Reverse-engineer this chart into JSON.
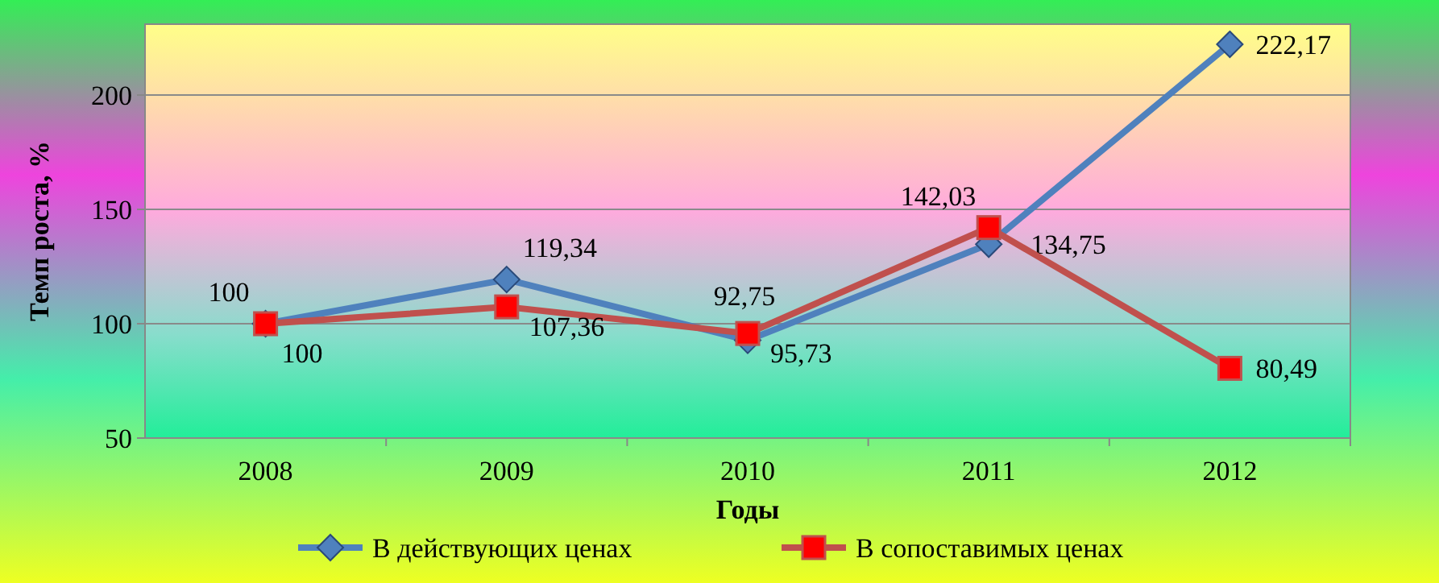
{
  "chart_data": {
    "type": "line",
    "xlabel": "Годы",
    "ylabel": "Темп роста, %",
    "categories": [
      "2008",
      "2009",
      "2010",
      "2011",
      "2012"
    ],
    "series": [
      {
        "name": "В действующих ценах",
        "color": "#4f81bd",
        "marker": "diamond",
        "values": [
          100,
          119.34,
          92.75,
          134.75,
          222.17
        ],
        "value_labels": [
          "100",
          "119,34",
          "92,75",
          "134,75",
          "222,17"
        ]
      },
      {
        "name": "В сопоставимых ценах",
        "color": "#c0504d",
        "marker": "square",
        "values": [
          100,
          107.36,
          95.73,
          142.03,
          80.49
        ],
        "value_labels": [
          "100",
          "107,36",
          "95,73",
          "142,03",
          "80,49"
        ]
      }
    ],
    "ylim": [
      50,
      231
    ],
    "yticks": [
      50,
      100,
      150,
      200
    ],
    "grid": "y",
    "legend": "bottom"
  }
}
